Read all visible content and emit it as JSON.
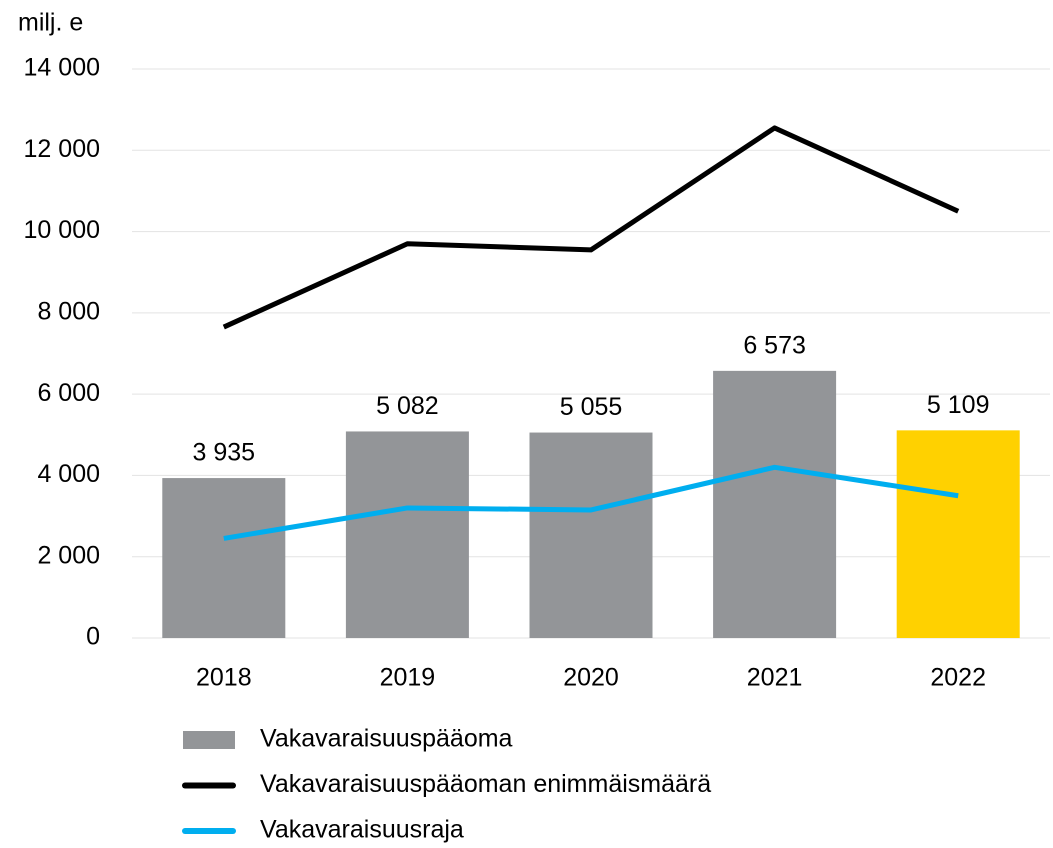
{
  "chart_data": {
    "type": "bar",
    "y_label": "milj. e",
    "categories": [
      "2018",
      "2019",
      "2020",
      "2021",
      "2022"
    ],
    "series": [
      {
        "name": "Vakavaraisuuspääoma",
        "type": "bar",
        "color": "#939598",
        "colors": [
          "#939598",
          "#939598",
          "#939598",
          "#939598",
          "#ffd100"
        ],
        "values": [
          3935,
          5082,
          5055,
          6573,
          5109
        ],
        "value_labels": [
          "3 935",
          "5 082",
          "5 055",
          "6 573",
          "5 109"
        ]
      },
      {
        "name": "Vakavaraisuuspääoman enimmäismäärä",
        "type": "line",
        "color": "#000000",
        "values": [
          7650,
          9700,
          9550,
          12550,
          10500
        ]
      },
      {
        "name": "Vakavaraisuusraja",
        "type": "line",
        "color": "#00aeef",
        "values": [
          2450,
          3200,
          3150,
          4200,
          3500
        ]
      }
    ],
    "ylim": [
      0,
      14000
    ],
    "yticks": [
      0,
      {
        "value": 2000,
        "label": "2 000"
      },
      {
        "value": 4000,
        "label": "4 000"
      },
      {
        "value": 6000,
        "label": "6 000"
      },
      {
        "value": 8000,
        "label": "8 000"
      },
      {
        "value": 10000,
        "label": "10 000"
      },
      {
        "value": 12000,
        "label": "12 000"
      },
      {
        "value": 14000,
        "label": "14 000"
      }
    ],
    "grid": true,
    "legend": "bottom"
  }
}
